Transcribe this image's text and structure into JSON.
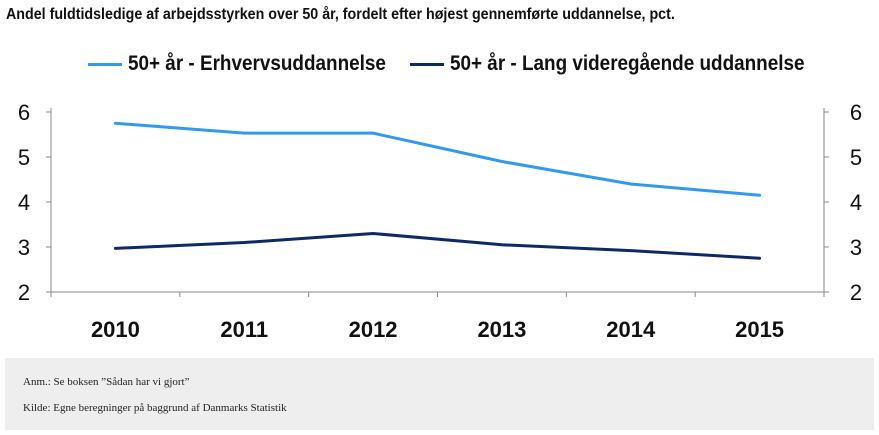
{
  "title": "Andel fuldtidsledige af arbejdsstyrken over 50 år, fordelt efter højest gennemførte uddannelse, pct.",
  "colors": {
    "series1": "#3399ee",
    "series2": "#0d2a66",
    "axis": "#888888"
  },
  "chart_data": {
    "type": "line",
    "title": "Andel fuldtidsledige af arbejdsstyrken over 50 år, fordelt efter højest gennemførte uddannelse, pct.",
    "categories": [
      "2010",
      "2011",
      "2012",
      "2013",
      "2014",
      "2015"
    ],
    "series": [
      {
        "name": "50+ år - Erhvervsuddannelse",
        "values": [
          5.75,
          5.53,
          5.53,
          4.9,
          4.4,
          4.15
        ]
      },
      {
        "name": "50+ år - Lang videregående uddannelse",
        "values": [
          2.97,
          3.1,
          3.3,
          3.05,
          2.92,
          2.75
        ]
      }
    ],
    "ylim": [
      2,
      6
    ],
    "yticks": [
      "2",
      "3",
      "4",
      "5",
      "6"
    ],
    "y2ticks": [
      "2",
      "3",
      "4",
      "5",
      "6"
    ],
    "xlabel": "",
    "ylabel": "",
    "grid": false,
    "legend_position": "top"
  },
  "footer": {
    "note": "Anm.: Se boksen ”Sådan har vi gjort”",
    "source": "Kilde: Egne beregninger på baggrund  af Danmarks Statistik"
  }
}
